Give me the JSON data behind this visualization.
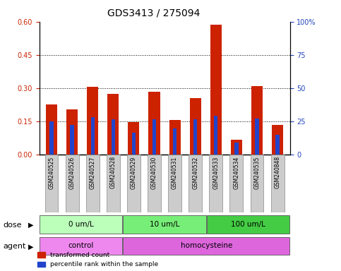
{
  "title": "GDS3413 / 275094",
  "samples": [
    "GSM240525",
    "GSM240526",
    "GSM240527",
    "GSM240528",
    "GSM240529",
    "GSM240530",
    "GSM240531",
    "GSM240532",
    "GSM240533",
    "GSM240534",
    "GSM240535",
    "GSM240848"
  ],
  "red_values": [
    0.225,
    0.205,
    0.305,
    0.275,
    0.145,
    0.285,
    0.155,
    0.255,
    0.585,
    0.065,
    0.31,
    0.135
  ],
  "blue_values": [
    0.148,
    0.133,
    0.168,
    0.158,
    0.098,
    0.158,
    0.118,
    0.158,
    0.175,
    0.055,
    0.163,
    0.088
  ],
  "dose_groups": [
    {
      "label": "0 um/L",
      "start": 0,
      "end": 4,
      "color": "#bbffbb"
    },
    {
      "label": "10 um/L",
      "start": 4,
      "end": 8,
      "color": "#77ee77"
    },
    {
      "label": "100 um/L",
      "start": 8,
      "end": 12,
      "color": "#44cc44"
    }
  ],
  "agent_groups": [
    {
      "label": "control",
      "start": 0,
      "end": 4,
      "color": "#ee88ee"
    },
    {
      "label": "homocysteine",
      "start": 4,
      "end": 12,
      "color": "#dd66dd"
    }
  ],
  "ylim_left": [
    0,
    0.6
  ],
  "ylim_right": [
    0,
    100
  ],
  "yticks_left": [
    0,
    0.15,
    0.3,
    0.45,
    0.6
  ],
  "yticks_right": [
    0,
    25,
    50,
    75,
    100
  ],
  "right_tick_labels": [
    "0",
    "25",
    "50",
    "75",
    "100%"
  ],
  "grid_lines": [
    0.15,
    0.3,
    0.45
  ],
  "red_color": "#cc2200",
  "blue_color": "#2244cc",
  "left_tick_color": "#cc2200",
  "right_tick_color": "#2244bb",
  "title_fontsize": 10,
  "tick_fontsize": 7,
  "label_fontsize": 5.5,
  "legend_red": "transformed count",
  "legend_blue": "percentile rank within the sample",
  "dose_label": "dose",
  "agent_label": "agent"
}
